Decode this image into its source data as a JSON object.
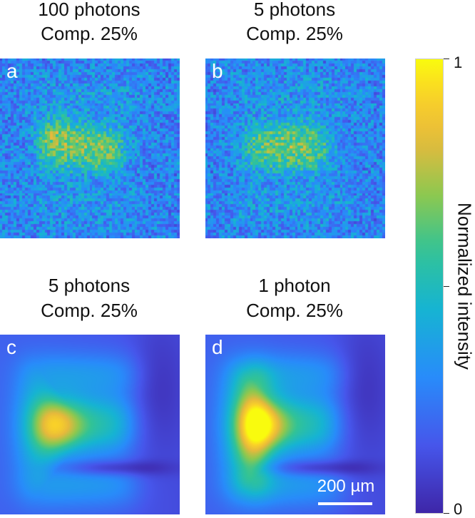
{
  "panels": [
    {
      "letter": "a",
      "title_line1": "100 photons",
      "title_line2": "Comp. 25%",
      "kind": "noisy-E"
    },
    {
      "letter": "b",
      "title_line1": "5 photons",
      "title_line2": "Comp. 25%",
      "kind": "noisy-T"
    },
    {
      "letter": "c",
      "title_line1": "5 photons",
      "title_line2": "Comp. 25%",
      "kind": "smooth-E"
    },
    {
      "letter": "d",
      "title_line1": "1 photon",
      "title_line2": "Comp. 25%",
      "kind": "smooth-T"
    }
  ],
  "scale_bar": {
    "label": "200 µm"
  },
  "colorbar": {
    "label": "Normalized intensity",
    "tick_top": "1",
    "tick_bottom": "0",
    "colormap": "parula"
  }
}
